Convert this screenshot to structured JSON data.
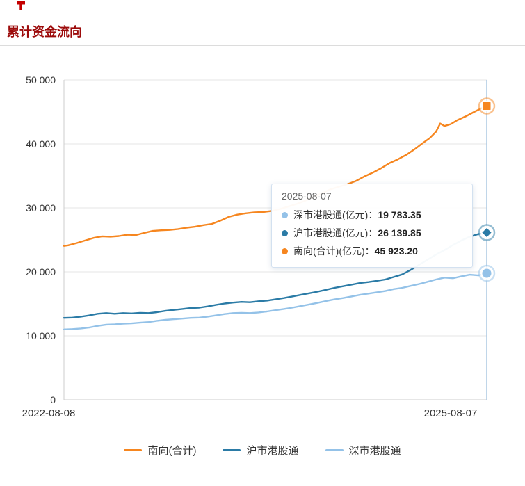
{
  "header": {
    "title": "累计资金流向"
  },
  "colors": {
    "title_red": "#9c0a0a",
    "south_orange": "#f6861f",
    "shanghai_blue": "#2b7ba6",
    "shenzhen_blue": "#94c2e8",
    "crosshair": "#abc8e2",
    "grid": "#e6e6e6",
    "axis": "#cccccc",
    "axis_text": "#333333"
  },
  "chart_data": {
    "type": "line",
    "title": "累计资金流向",
    "ylim": [
      0,
      50000
    ],
    "y_ticks": [
      0,
      10000,
      20000,
      30000,
      40000,
      50000
    ],
    "y_tick_labels": [
      "0",
      "10 000",
      "20 000",
      "30 000",
      "40 000",
      "50 000"
    ],
    "x_axis": {
      "start_label": "2022-08-08",
      "end_label": "2025-08-07"
    },
    "grid": true,
    "legend_position": "bottom",
    "crosshair_color": "#abc8e2",
    "series": [
      {
        "key": "south-total",
        "name": "南向(合计)",
        "color": "#f6861f",
        "end_marker": "square",
        "end_value": 45923.2,
        "x": [
          0,
          0.01,
          0.03,
          0.05,
          0.07,
          0.09,
          0.11,
          0.13,
          0.15,
          0.17,
          0.19,
          0.21,
          0.23,
          0.25,
          0.27,
          0.29,
          0.31,
          0.33,
          0.35,
          0.37,
          0.39,
          0.41,
          0.43,
          0.45,
          0.47,
          0.49,
          0.51,
          0.53,
          0.55,
          0.57,
          0.59,
          0.61,
          0.63,
          0.65,
          0.67,
          0.69,
          0.71,
          0.73,
          0.75,
          0.77,
          0.79,
          0.81,
          0.83,
          0.85,
          0.865,
          0.88,
          0.89,
          0.9,
          0.915,
          0.93,
          0.95,
          0.97,
          0.985,
          1
        ],
        "values": [
          24050,
          24150,
          24500,
          24900,
          25300,
          25550,
          25500,
          25600,
          25800,
          25750,
          26100,
          26400,
          26500,
          26550,
          26700,
          26900,
          27050,
          27300,
          27500,
          28000,
          28600,
          28950,
          29150,
          29300,
          29350,
          29500,
          29800,
          30200,
          30600,
          31100,
          31700,
          32300,
          32900,
          33300,
          33700,
          34200,
          34900,
          35500,
          36200,
          37000,
          37600,
          38300,
          39200,
          40200,
          40900,
          41900,
          43200,
          42800,
          43100,
          43700,
          44300,
          45000,
          45500,
          45923.2
        ]
      },
      {
        "key": "shanghai-connect",
        "name": "沪市港股通",
        "color": "#2b7ba6",
        "end_marker": "diamond",
        "end_value": 26139.85,
        "x": [
          0,
          0.02,
          0.04,
          0.06,
          0.08,
          0.1,
          0.12,
          0.14,
          0.16,
          0.18,
          0.2,
          0.22,
          0.24,
          0.26,
          0.28,
          0.3,
          0.32,
          0.34,
          0.36,
          0.38,
          0.4,
          0.42,
          0.44,
          0.46,
          0.48,
          0.5,
          0.52,
          0.54,
          0.56,
          0.58,
          0.6,
          0.62,
          0.64,
          0.66,
          0.68,
          0.7,
          0.72,
          0.74,
          0.76,
          0.78,
          0.8,
          0.82,
          0.84,
          0.86,
          0.88,
          0.9,
          0.92,
          0.94,
          0.96,
          0.98,
          1
        ],
        "values": [
          12800,
          12850,
          13000,
          13200,
          13450,
          13550,
          13450,
          13550,
          13500,
          13600,
          13550,
          13700,
          13900,
          14050,
          14200,
          14350,
          14400,
          14600,
          14850,
          15050,
          15200,
          15300,
          15250,
          15400,
          15500,
          15700,
          15900,
          16150,
          16400,
          16650,
          16900,
          17200,
          17500,
          17750,
          18000,
          18250,
          18400,
          18600,
          18800,
          19200,
          19600,
          20300,
          21100,
          21900,
          22700,
          23400,
          24200,
          24900,
          25500,
          25900,
          26139.85
        ]
      },
      {
        "key": "shenzhen-connect",
        "name": "深市港股通",
        "color": "#94c2e8",
        "end_marker": "circle",
        "end_value": 19783.35,
        "x": [
          0,
          0.02,
          0.04,
          0.06,
          0.08,
          0.1,
          0.12,
          0.14,
          0.16,
          0.18,
          0.2,
          0.22,
          0.24,
          0.26,
          0.28,
          0.3,
          0.32,
          0.34,
          0.36,
          0.38,
          0.4,
          0.42,
          0.44,
          0.46,
          0.48,
          0.5,
          0.52,
          0.54,
          0.56,
          0.58,
          0.6,
          0.62,
          0.64,
          0.66,
          0.68,
          0.7,
          0.72,
          0.74,
          0.76,
          0.78,
          0.8,
          0.82,
          0.84,
          0.86,
          0.88,
          0.9,
          0.92,
          0.94,
          0.96,
          0.98,
          1
        ],
        "values": [
          11000,
          11050,
          11150,
          11300,
          11550,
          11750,
          11800,
          11900,
          11950,
          12050,
          12150,
          12350,
          12500,
          12600,
          12700,
          12800,
          12850,
          13000,
          13200,
          13400,
          13550,
          13600,
          13550,
          13650,
          13800,
          14000,
          14200,
          14400,
          14650,
          14900,
          15150,
          15450,
          15700,
          15900,
          16150,
          16400,
          16600,
          16800,
          17000,
          17300,
          17500,
          17800,
          18100,
          18450,
          18800,
          19100,
          19000,
          19300,
          19550,
          19450,
          19783.35
        ]
      }
    ]
  },
  "tooltip": {
    "date": "2025-08-07",
    "rows": [
      {
        "label": "深市港股通(亿元)：",
        "value": "19 783.35",
        "color": "#94c2e8"
      },
      {
        "label": "沪市港股通(亿元)：",
        "value": "26 139.85",
        "color": "#2b7ba6"
      },
      {
        "label": "南向(合计)(亿元)：",
        "value": "45 923.20",
        "color": "#f6861f"
      }
    ]
  },
  "legend": {
    "items": [
      {
        "label": "南向(合计)",
        "color": "#f6861f"
      },
      {
        "label": "沪市港股通",
        "color": "#2b7ba6"
      },
      {
        "label": "深市港股通",
        "color": "#94c2e8"
      }
    ]
  }
}
